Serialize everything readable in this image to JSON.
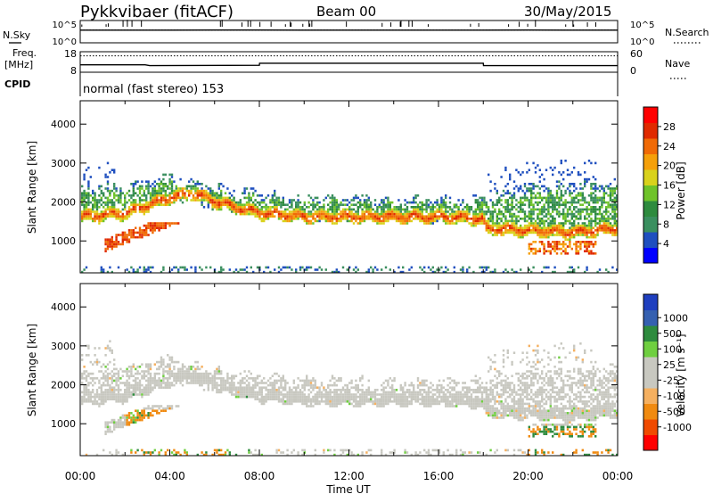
{
  "header": {
    "station": "Pykkvibaer (fitACF)",
    "beam": "Beam 00",
    "date": "30/May/2015",
    "mode_line": "normal (fast stereo) 153"
  },
  "left_labels": {
    "nsky": "N.Sky",
    "freq": "Freq.",
    "freq_unit": "[MHz]",
    "cpid": "CPID"
  },
  "right_labels": {
    "nsearch": "N.Search",
    "nave": "Nave"
  },
  "colors": {
    "power": [
      "#0000ff",
      "#1f4fbf",
      "#3a8f5f",
      "#2e8b3e",
      "#6fc32a",
      "#d9d21c",
      "#f5a00a",
      "#f06a06",
      "#e02a00",
      "#ff0000"
    ],
    "velocity": [
      "#ff0000",
      "#f04a00",
      "#f08a10",
      "#f5b060",
      "#c8c8c0",
      "#c8c8c0",
      "#6fcf40",
      "#2e8b3e",
      "#3560b0",
      "#1f3fbf"
    ]
  },
  "chart_data": [
    {
      "type": "line",
      "name": "noise-panel",
      "left_ticks": [
        "10^5",
        "10^0"
      ],
      "right_ticks": [
        "10^5",
        "10^0"
      ],
      "x": [
        0,
        2,
        4,
        6,
        8,
        10,
        12,
        14,
        16,
        18,
        20,
        22,
        24
      ],
      "series": [
        {
          "values": [
            1000,
            1020,
            1010,
            1030,
            1040,
            1010,
            1015,
            1025,
            1020,
            1010,
            1030,
            1020,
            1015
          ]
        },
        {
          "values": [
            1050,
            1060,
            1055,
            1060,
            1065,
            1058,
            1060,
            1062,
            1058,
            1060,
            1066,
            1060,
            1058
          ]
        }
      ]
    },
    {
      "type": "line",
      "name": "freq-panel",
      "left_ticks": [
        "18",
        "8"
      ],
      "right_ticks": [
        "60",
        "0"
      ],
      "x": [
        0,
        2.9,
        3.1,
        8,
        8.01,
        18,
        18.01,
        24
      ],
      "series": [
        {
          "values": [
            11.6,
            11.6,
            11.2,
            11.4,
            12.4,
            12.4,
            11.2,
            11.2
          ]
        },
        {
          "values": [
            48,
            48,
            48,
            48,
            48,
            48,
            48,
            48
          ]
        }
      ]
    },
    {
      "type": "heatmap",
      "name": "power",
      "ylabel": "Slant Range [km]",
      "yticks": [
        1000,
        2000,
        3000,
        4000
      ],
      "ylim": [
        180,
        4600
      ],
      "xlim": [
        0,
        24
      ],
      "colorbar_label": "Power [dB]",
      "colorbar_ticks": [
        "4",
        "8",
        "12",
        "16",
        "20",
        "24",
        "28"
      ],
      "bands": [
        {
          "x": [
            0.0,
            2.0,
            4.0,
            5.0,
            6.5,
            8.0,
            10.0,
            12.0,
            14.0,
            16.0,
            17.9,
            18.1,
            20.0,
            22.0,
            24.0
          ],
          "r": [
            1650,
            1750,
            2150,
            2250,
            1950,
            1750,
            1650,
            1650,
            1650,
            1650,
            1600,
            1350,
            1300,
            1250,
            1350
          ]
        },
        {
          "x": [
            0.0,
            2.0,
            4.0,
            6.0,
            8.0,
            10.0,
            12.0,
            14.0,
            16.0,
            18.0,
            20.0,
            22.0,
            24.0
          ],
          "r": [
            2150,
            2200,
            2450,
            2150,
            2000,
            1900,
            1900,
            1850,
            1850,
            1900,
            2150,
            2200,
            2250
          ]
        }
      ]
    },
    {
      "type": "heatmap",
      "name": "velocity",
      "ylabel": "Slant Range [km]",
      "yticks": [
        1000,
        2000,
        3000,
        4000
      ],
      "ylim": [
        180,
        4600
      ],
      "xlim": [
        0,
        24
      ],
      "xticks": [
        "00:00",
        "04:00",
        "08:00",
        "12:00",
        "16:00",
        "20:00",
        "00:00"
      ],
      "xlabel": "Time UT",
      "colorbar_label": "Velocity [m s⁻¹]",
      "colorbar_ticks": [
        "-1000",
        "-500",
        "-100",
        "-25",
        "25",
        "100",
        "500",
        "1000"
      ]
    }
  ]
}
